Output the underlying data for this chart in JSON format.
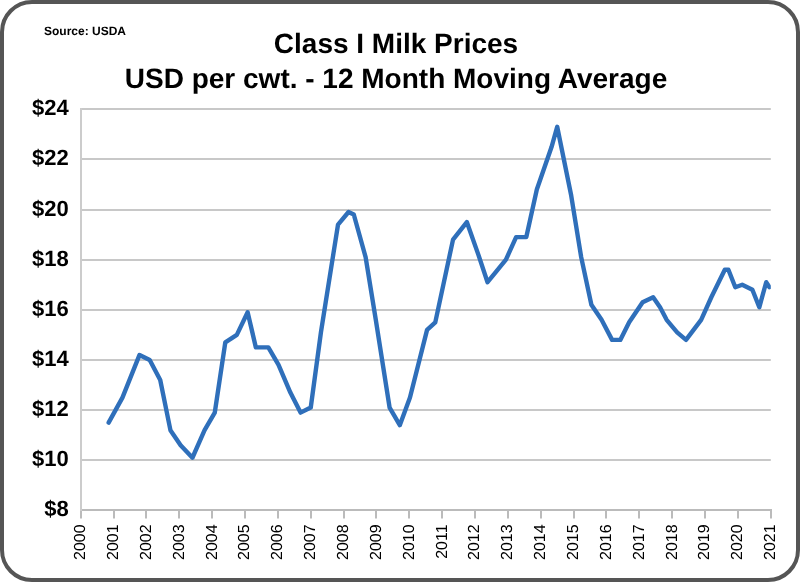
{
  "chart_data": {
    "type": "line",
    "title": "Class I Milk Prices",
    "subtitle": "USD per cwt. - 12 Month Moving Average",
    "annotations": [
      "Source: USDA"
    ],
    "x": [
      2000.85,
      2001.27,
      2001.79,
      2002.1,
      2002.42,
      2002.73,
      2003.04,
      2003.4,
      2003.77,
      2004.08,
      2004.4,
      2004.75,
      2005.08,
      2005.33,
      2005.71,
      2006.02,
      2006.38,
      2006.69,
      2007,
      2007.31,
      2007.83,
      2008.15,
      2008.31,
      2008.67,
      2008.98,
      2009.4,
      2009.71,
      2010.02,
      2010.54,
      2010.79,
      2011.33,
      2011.75,
      2012.1,
      2012.38,
      2012.63,
      2012.94,
      2013.25,
      2013.56,
      2013.88,
      2014.33,
      2014.5,
      2014.92,
      2015.23,
      2015.54,
      2015.85,
      2016.17,
      2016.42,
      2016.69,
      2017.1,
      2017.42,
      2017.63,
      2017.83,
      2018.15,
      2018.42,
      2018.88,
      2019.19,
      2019.6,
      2019.71,
      2019.92,
      2020.13,
      2020.44,
      2020.65,
      2020.86,
      2020.96
    ],
    "series": [
      {
        "color": "#2f6fba",
        "values": [
          11.5,
          12.5,
          14.2,
          14.0,
          13.2,
          11.2,
          10.6,
          10.1,
          11.2,
          11.9,
          14.7,
          15.0,
          15.9,
          14.5,
          14.5,
          13.8,
          12.7,
          11.9,
          12.1,
          15.1,
          19.4,
          19.9,
          19.8,
          18.1,
          15.6,
          12.1,
          11.4,
          12.5,
          15.2,
          15.5,
          18.8,
          19.5,
          18.2,
          17.1,
          17.5,
          18.0,
          18.9,
          18.9,
          20.8,
          22.5,
          23.3,
          20.6,
          18.1,
          16.2,
          15.6,
          14.8,
          14.8,
          15.5,
          16.3,
          16.5,
          16.1,
          15.6,
          15.1,
          14.8,
          15.6,
          16.5,
          17.6,
          17.6,
          16.9,
          17.0,
          16.8,
          16.1,
          17.1,
          16.9
        ]
      }
    ],
    "xlim": [
      2000,
      2021
    ],
    "xticks": [
      2000,
      2001,
      2002,
      2003,
      2004,
      2005,
      2006,
      2007,
      2008,
      2009,
      2010,
      2011,
      2012,
      2013,
      2014,
      2015,
      2016,
      2017,
      2018,
      2019,
      2020,
      2021
    ],
    "ylim": [
      8,
      24
    ],
    "yticks": [
      {
        "value": 8,
        "label": "$8"
      },
      {
        "value": 10,
        "label": "$10"
      },
      {
        "value": 12,
        "label": "$12"
      },
      {
        "value": 14,
        "label": "$14"
      },
      {
        "value": 16,
        "label": "$16"
      },
      {
        "value": 18,
        "label": "$18"
      },
      {
        "value": 20,
        "label": "$20"
      },
      {
        "value": 22,
        "label": "$22"
      },
      {
        "value": 24,
        "label": "$24"
      }
    ],
    "grid": "y",
    "legend": false,
    "marker": "none",
    "line_style": "solid"
  }
}
